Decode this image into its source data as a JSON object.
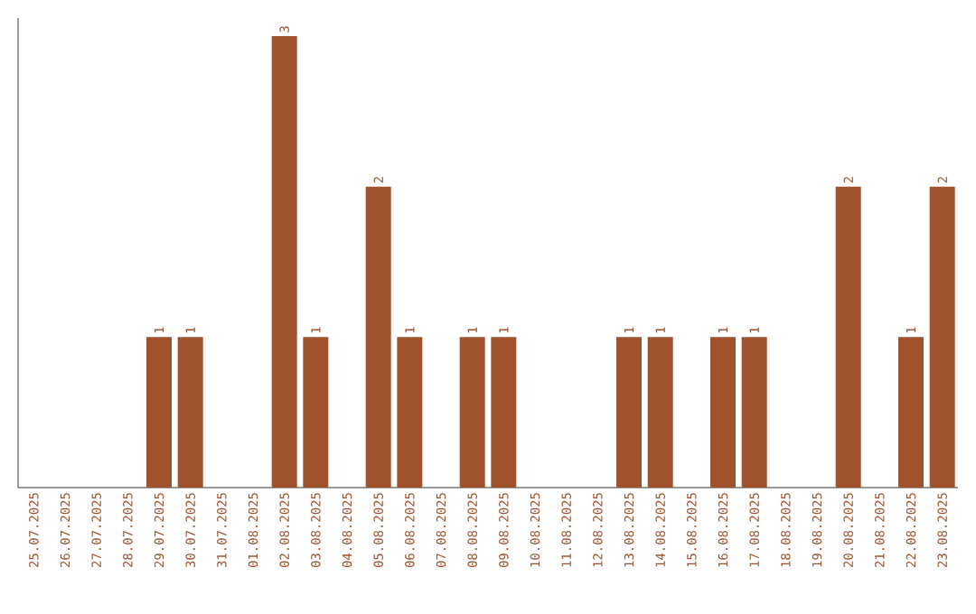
{
  "chart_data": {
    "type": "bar",
    "color": "#a0522d",
    "categories": [
      "25.07.2025",
      "26.07.2025",
      "27.07.2025",
      "28.07.2025",
      "29.07.2025",
      "30.07.2025",
      "31.07.2025",
      "01.08.2025",
      "02.08.2025",
      "03.08.2025",
      "04.08.2025",
      "05.08.2025",
      "06.08.2025",
      "07.08.2025",
      "08.08.2025",
      "09.08.2025",
      "10.08.2025",
      "11.08.2025",
      "12.08.2025",
      "13.08.2025",
      "14.08.2025",
      "15.08.2025",
      "16.08.2025",
      "17.08.2025",
      "18.08.2025",
      "19.08.2025",
      "20.08.2025",
      "21.08.2025",
      "22.08.2025",
      "23.08.2025"
    ],
    "values": [
      0,
      0,
      0,
      0,
      1,
      1,
      0,
      0,
      3,
      1,
      0,
      2,
      1,
      0,
      1,
      1,
      0,
      0,
      0,
      1,
      1,
      0,
      1,
      1,
      0,
      0,
      2,
      0,
      1,
      2
    ],
    "value_labels": [
      null,
      null,
      null,
      null,
      "1",
      "1",
      null,
      null,
      "3",
      "1",
      null,
      "2",
      "1",
      null,
      "1",
      "1",
      null,
      null,
      null,
      "1",
      "1",
      null,
      "1",
      "1",
      null,
      null,
      "2",
      null,
      "1",
      "2"
    ],
    "tick_labels": "x"
  }
}
